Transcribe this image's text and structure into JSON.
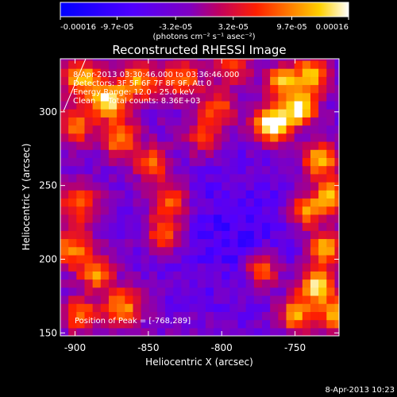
{
  "colorbar": {
    "tick_labels": [
      "-0.00016",
      "-9.7e-05",
      "-3.2e-05",
      "3.2e-05",
      "9.7e-05",
      "0.00016"
    ],
    "tick_values": [
      -0.00016,
      -9.7e-05,
      -3.2e-05,
      3.2e-05,
      9.7e-05,
      0.00016
    ],
    "unit_label": "(photons cm⁻² s⁻¹ asec⁻²)",
    "range": [
      -0.00016,
      0.00016
    ],
    "colors": [
      "#0000ff",
      "#5000ff",
      "#8000c0",
      "#c00060",
      "#ff2000",
      "#ff8000",
      "#ffd000",
      "#ffffff"
    ]
  },
  "chart_data": {
    "type": "heatmap",
    "title": "Reconstructed RHESSI Image",
    "xlabel": "Heliocentric X (arcsec)",
    "ylabel": "Heliocentric Y (arcsec)",
    "xlim": [
      -910,
      -720
    ],
    "ylim": [
      148,
      336
    ],
    "x_ticks": [
      -900,
      -850,
      -800,
      -750
    ],
    "y_ticks": [
      150,
      200,
      250,
      300
    ],
    "grid": false,
    "colormap": "rhessi blue-purple-red-yellow-white",
    "peak_position": [
      -768,
      289
    ],
    "annotations": [
      "8-Apr-2013 03:30:46.000 to 03:36:46.000",
      "Detectors: 3F 5F 6F 7F 8F 9F, Att 0",
      "Energy Range: 12.0 - 25.0 keV",
      "Clean     Total counts: 8.36E+03",
      "Position of Peak = [-768,289]"
    ]
  },
  "footer": {
    "timestamp": "8-Apr-2013 10:23"
  }
}
